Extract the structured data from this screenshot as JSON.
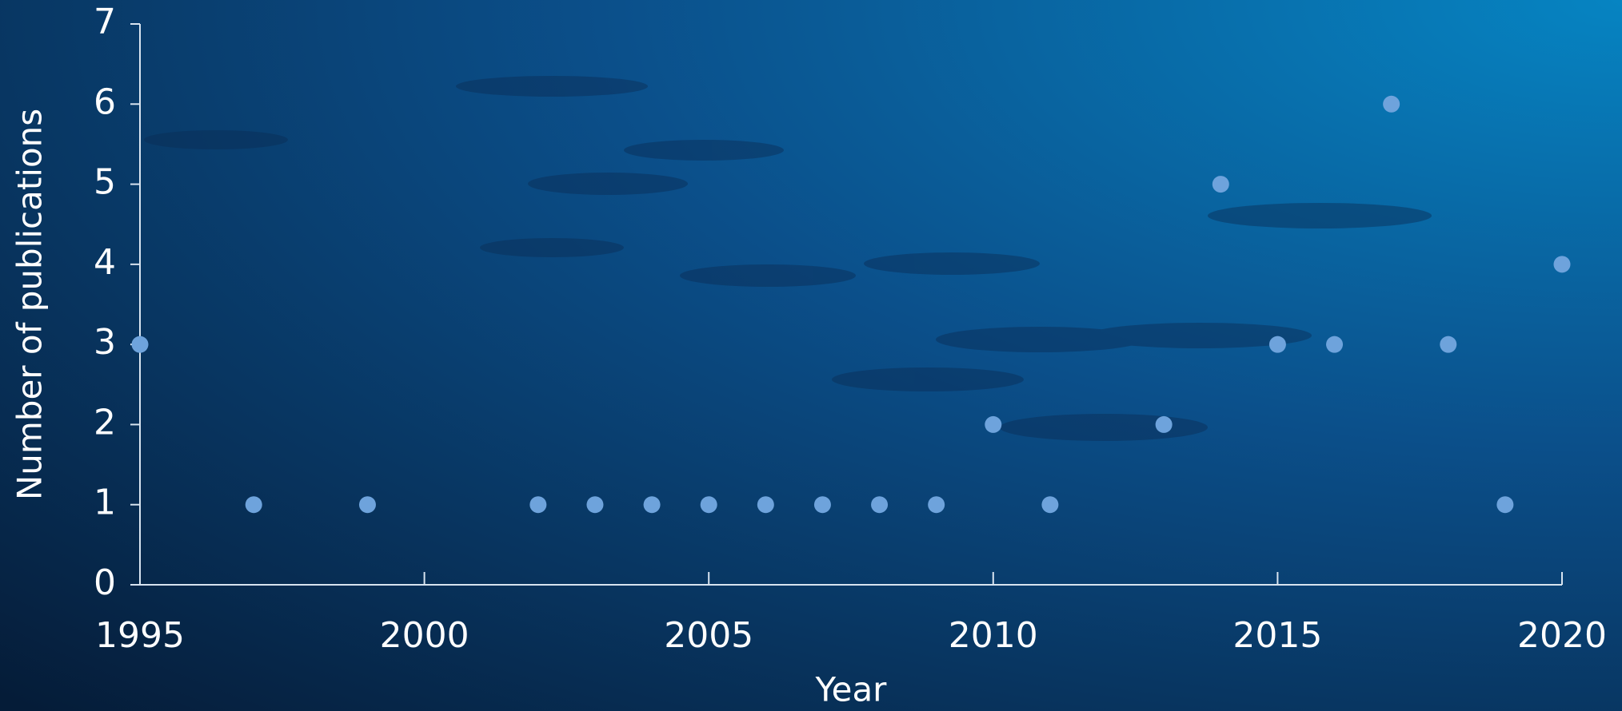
{
  "chart_data": {
    "type": "scatter",
    "x_label": "Year",
    "y_label": "Number of publications",
    "x": [
      1995,
      1997,
      1999,
      2002,
      2003,
      2004,
      2005,
      2006,
      2007,
      2008,
      2009,
      2010,
      2011,
      2013,
      2014,
      2015,
      2016,
      2017,
      2018,
      2019,
      2020
    ],
    "series": [
      {
        "color": "#6ea3dc",
        "values": [
          3,
          1,
          1,
          1,
          1,
          1,
          1,
          1,
          1,
          1,
          1,
          2,
          1,
          2,
          5,
          3,
          3,
          6,
          3,
          1,
          4
        ]
      }
    ],
    "xlim": [
      1995,
      2020
    ],
    "xticks": [
      1995,
      2000,
      2005,
      2010,
      2015,
      2020
    ],
    "ylim": [
      0,
      7
    ],
    "yticks": [
      0,
      1,
      2,
      3,
      4,
      5,
      6,
      7
    ],
    "grid": false
  }
}
